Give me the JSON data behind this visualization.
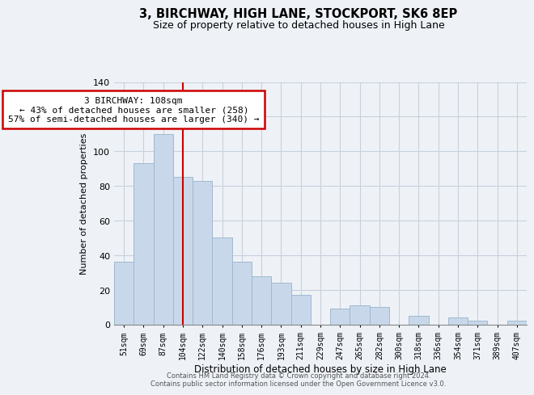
{
  "title": "3, BIRCHWAY, HIGH LANE, STOCKPORT, SK6 8EP",
  "subtitle": "Size of property relative to detached houses in High Lane",
  "xlabel": "Distribution of detached houses by size in High Lane",
  "ylabel": "Number of detached properties",
  "bar_labels": [
    "51sqm",
    "69sqm",
    "87sqm",
    "104sqm",
    "122sqm",
    "140sqm",
    "158sqm",
    "176sqm",
    "193sqm",
    "211sqm",
    "229sqm",
    "247sqm",
    "265sqm",
    "282sqm",
    "300sqm",
    "318sqm",
    "336sqm",
    "354sqm",
    "371sqm",
    "389sqm",
    "407sqm"
  ],
  "bar_values": [
    36,
    93,
    110,
    85,
    83,
    50,
    36,
    28,
    24,
    17,
    0,
    9,
    11,
    10,
    0,
    5,
    0,
    4,
    2,
    0,
    2
  ],
  "bar_color": "#c8d8ea",
  "bar_edge_color": "#a0b8cc",
  "ylim": [
    0,
    140
  ],
  "yticks": [
    0,
    20,
    40,
    60,
    80,
    100,
    120,
    140
  ],
  "vline_idx": 3,
  "property_line_label": "3 BIRCHWAY: 108sqm",
  "annotation_line1": "← 43% of detached houses are smaller (258)",
  "annotation_line2": "57% of semi-detached houses are larger (340) →",
  "annotation_box_color": "#ffffff",
  "annotation_box_edge": "#cc0000",
  "vline_color": "#cc0000",
  "footer_line1": "Contains HM Land Registry data © Crown copyright and database right 2024.",
  "footer_line2": "Contains public sector information licensed under the Open Government Licence v3.0.",
  "bg_color": "#eef2f7",
  "grid_color": "#c8d0dc",
  "title_fontsize": 10.5,
  "subtitle_fontsize": 9
}
